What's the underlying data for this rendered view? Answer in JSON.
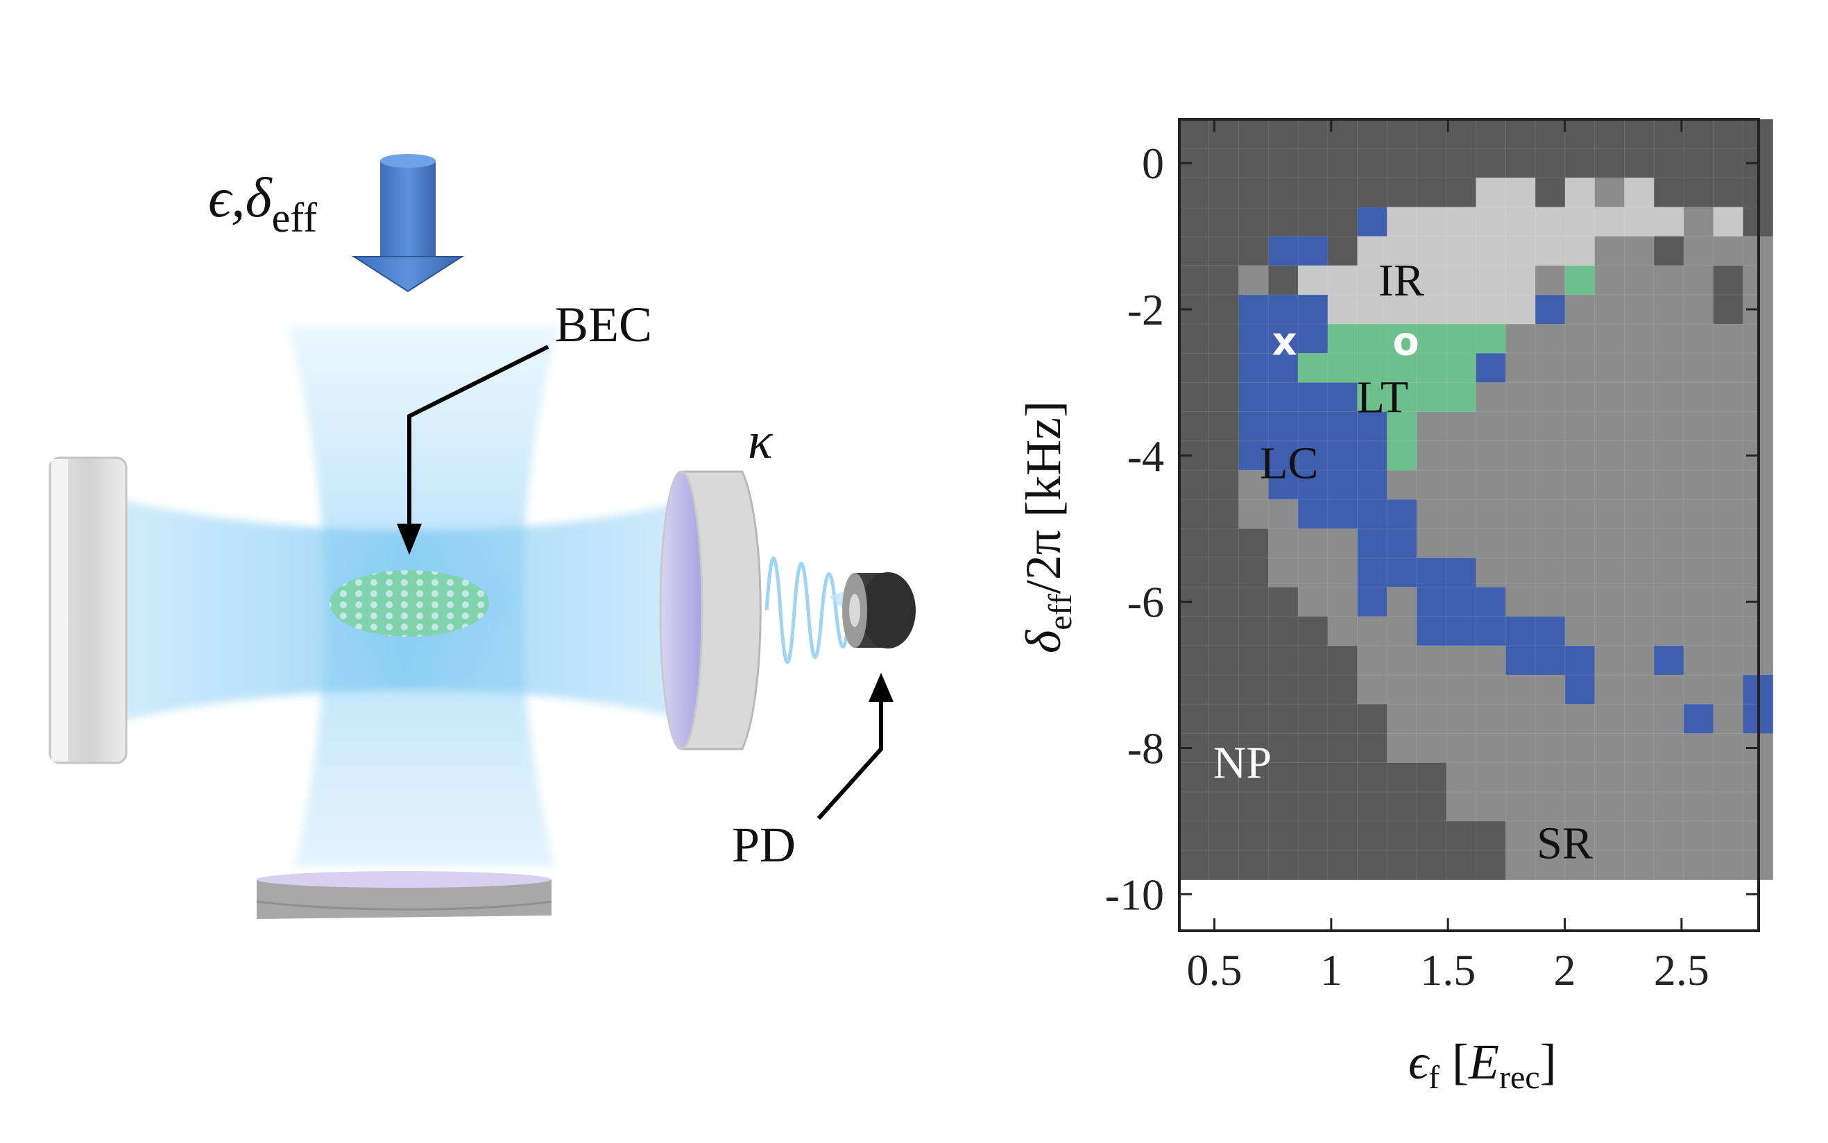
{
  "setup": {
    "pump_label_main": "ϵ,δ",
    "pump_label_sub": "eff",
    "bec_label": "BEC",
    "kappa_label": "κ",
    "pd_label": "PD"
  },
  "colors": {
    "NP": "#595959",
    "SR": "#8c8c8c",
    "IR": "#c8c8c8",
    "LC": "#3f5fae",
    "LT": "#6dbf8c",
    "beam": "#9fd4f5",
    "arrow": "#4a7fce"
  },
  "chart_data": {
    "type": "heatmap",
    "xlabel": "ϵf [Erec]",
    "xlabel_main": "ϵ",
    "xlabel_sub": "f",
    "xlabel_unit_main": "E",
    "xlabel_unit_sub": "rec",
    "ylabel": "δeff/2π [kHz]",
    "ylabel_main": "δ",
    "ylabel_sub": "eff",
    "ylabel_rest": "/2π [kHz]",
    "xlim": [
      0.35,
      2.83
    ],
    "ylim": [
      -10.5,
      0.6
    ],
    "xticks": [
      0.5,
      1,
      1.5,
      2,
      2.5
    ],
    "xtick_labels": [
      "0.5",
      "1",
      "1.5",
      "2",
      "2.5"
    ],
    "yticks": [
      0,
      -2,
      -4,
      -6,
      -8,
      -10
    ],
    "ytick_labels": [
      "0",
      "-2",
      "-4",
      "-6",
      "-8",
      "-10"
    ],
    "x_start": 0.35,
    "x_step": 0.127,
    "y_start": 0.6,
    "y_step": -0.4,
    "legend_map": {
      "N": "NP",
      "S": "SR",
      "I": "IR",
      "B": "LC",
      "G": "LT"
    },
    "grid_rows": [
      "NNNNNNNNNNNNNNNNNNNN",
      "NNNNNNNNNNNNNNNNNNNN",
      "NNNNNNNNNNIINISINNNN",
      "NNNNNNBIIIIIIIIIISIN",
      "NNNBBNIIIIIIIISSNSSS",
      "NNSNIIIIIIIISGSSSSNS",
      "NNBBBIIIIIIIBSSSSSNS",
      "NNBBBGGGGGGSSSSSSSSS",
      "NNBBGGGGGGBSSSSSSSSS",
      "NNBBBBGGGGSSSSSSSSSS",
      "NNBBBBBGSSSSSSSSSSSS",
      "NNBBBBBGSSSSSSSSSSSS",
      "NNSBBBBSSSSSSSSSSSSS",
      "NNSSBBBBSSSSSSSSSSSS",
      "NNNSSSBBSSSSSSSSSSSS",
      "NNNSSSBBBBSSSSSSSSSS",
      "NNNNSSBSBBBSSSSSSSSS",
      "NNNNNSSSBBBBBSSSSSSS",
      "NNNNNNSSSSSBBBSSBSSS",
      "NNNNNNSSSSSSSBSSSSSB",
      "NNNNNNNSSSSSSSSSSBSB",
      "NNNNNNNSSSSSSSSSSSSS",
      "NNNNNNNNNSSSSSSSSSSS",
      "NNNNNNNNNSSSSSSSSSSS",
      "NNNNNNNNNNNSSSSSSSSS",
      "NNNNNNNNNNNSSSSSSSSS"
    ],
    "region_labels": [
      {
        "text": "IR",
        "x": 1.3,
        "y": -1.6,
        "color": "#111111"
      },
      {
        "text": "LT",
        "x": 1.22,
        "y": -3.2,
        "color": "#111111"
      },
      {
        "text": "LC",
        "x": 0.82,
        "y": -4.1,
        "color": "#111111"
      },
      {
        "text": "NP",
        "x": 0.62,
        "y": -8.2,
        "color": "#ffffff"
      },
      {
        "text": "SR",
        "x": 2.0,
        "y": -9.3,
        "color": "#111111"
      }
    ],
    "markers": [
      {
        "symbol": "x",
        "x": 0.8,
        "y": -2.45
      },
      {
        "symbol": "o",
        "x": 1.32,
        "y": -2.45
      }
    ]
  }
}
